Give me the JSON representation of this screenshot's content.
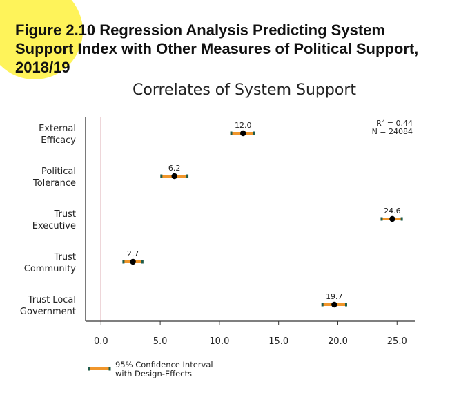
{
  "figure": {
    "title_lines": [
      "Figure 2.10 Regression Analysis Predicting System",
      "Support Index with Other Measures of Political Support,",
      "2018/19"
    ]
  },
  "chart_data": {
    "type": "scatter",
    "title": "Correlates of System Support",
    "categories": [
      [
        "External",
        "Efficacy"
      ],
      [
        "Political",
        "Tolerance"
      ],
      [
        "Trust",
        "Executive"
      ],
      [
        "Trust",
        "Community"
      ],
      [
        "Trust Local",
        "Government"
      ]
    ],
    "values": [
      12.0,
      6.2,
      24.6,
      2.7,
      19.7
    ],
    "value_labels": [
      "12.0",
      "6.2",
      "24.6",
      "2.7",
      "19.7"
    ],
    "ci_low": [
      11.0,
      5.1,
      23.7,
      1.9,
      18.7
    ],
    "ci_high": [
      12.9,
      7.3,
      25.4,
      3.5,
      20.7
    ],
    "xlim": [
      -1.3,
      26.5
    ],
    "xticks": [
      0.0,
      5.0,
      10.0,
      15.0,
      20.0,
      25.0
    ],
    "xtick_labels": [
      "0.0",
      "5.0",
      "10.0",
      "15.0",
      "20.0",
      "25.0"
    ],
    "reference_line": 0,
    "stats": {
      "r2_label": "R",
      "r2_sup": "2",
      "r2_value": " = 0.44",
      "n_text": "N = 24084"
    },
    "legend": {
      "lines": [
        "95% Confidence Interval",
        "with Design-Effects"
      ],
      "position": "bottom-left"
    },
    "colors": {
      "ci": "#f0962b",
      "cap": "#1f5b4a",
      "point": "#000000",
      "refline": "#a8323e",
      "axis": "#333333"
    },
    "grid": false
  }
}
